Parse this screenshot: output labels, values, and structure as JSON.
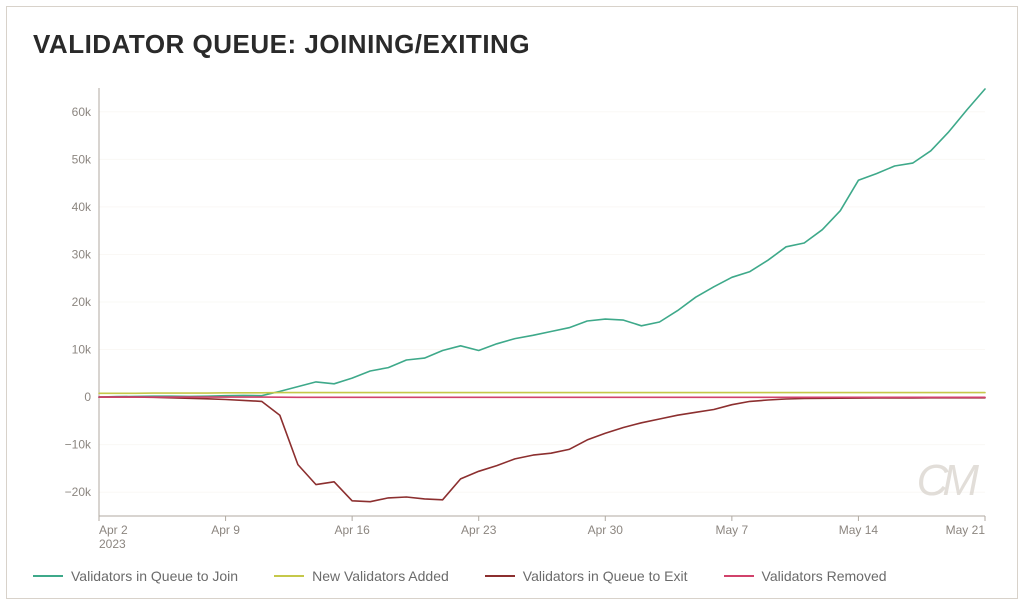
{
  "title": "VALIDATOR QUEUE: JOINING/EXITING",
  "watermark": "CM",
  "chart": {
    "type": "line",
    "background_color": "#ffffff",
    "grid_color": "#faf8f5",
    "axis_color": "#b0aaa2",
    "tick_label_color": "#8c8680",
    "tick_label_fontsize": 12,
    "ylim": [
      -25000,
      65000
    ],
    "ytick_step": 10000,
    "yticks": [
      -20000,
      -10000,
      0,
      10000,
      20000,
      30000,
      40000,
      50000,
      60000
    ],
    "ytick_labels": [
      "−20k",
      "−10k",
      "0",
      "10k",
      "20k",
      "30k",
      "40k",
      "50k",
      "60k"
    ],
    "x_start": 0,
    "x_end": 49,
    "xticks": [
      0,
      7,
      14,
      21,
      28,
      35,
      42,
      49
    ],
    "xtick_labels": [
      "Apr 2",
      "Apr 9",
      "Apr 16",
      "Apr 23",
      "Apr 30",
      "May 7",
      "May 14",
      "May 21"
    ],
    "xtick_year": "2023",
    "line_width": 1.6,
    "series": [
      {
        "id": "join_queue",
        "label": "Validators in Queue to Join",
        "color": "#3ea98a",
        "data": [
          0,
          100,
          150,
          200,
          200,
          150,
          200,
          300,
          350,
          300,
          1200,
          2200,
          3200,
          2800,
          4000,
          5500,
          6200,
          7800,
          8200,
          9800,
          10800,
          9800,
          11200,
          12300,
          13000,
          13800,
          14600,
          16000,
          16400,
          16200,
          15000,
          15800,
          18200,
          21000,
          23200,
          25200,
          26400,
          28800,
          31600,
          32400,
          35200,
          39200,
          45600,
          47000,
          48600,
          49200,
          51800,
          55800,
          60400,
          64800
        ]
      },
      {
        "id": "new_added",
        "label": "New Validators Added",
        "color": "#c5c84a",
        "data": [
          800,
          800,
          800,
          850,
          850,
          850,
          850,
          900,
          900,
          900,
          950,
          950,
          950,
          950,
          950,
          950,
          950,
          950,
          950,
          950,
          950,
          950,
          950,
          950,
          950,
          950,
          950,
          950,
          950,
          950,
          950,
          950,
          950,
          950,
          950,
          950,
          950,
          950,
          950,
          950,
          950,
          950,
          950,
          950,
          950,
          950,
          950,
          950,
          950,
          950
        ]
      },
      {
        "id": "exit_queue",
        "label": "Validators in Queue to Exit",
        "color": "#8c2f2f",
        "data": [
          0,
          0,
          0,
          -50,
          -150,
          -250,
          -350,
          -500,
          -700,
          -900,
          -3800,
          -14200,
          -18400,
          -17800,
          -21800,
          -22000,
          -21200,
          -21000,
          -21400,
          -21600,
          -17200,
          -15600,
          -14400,
          -13000,
          -12200,
          -11800,
          -11000,
          -9000,
          -7600,
          -6400,
          -5400,
          -4600,
          -3800,
          -3200,
          -2600,
          -1600,
          -900,
          -600,
          -400,
          -300,
          -250,
          -220,
          -200,
          -180,
          -170,
          -160,
          -150,
          -150,
          -150,
          -150
        ]
      },
      {
        "id": "removed",
        "label": "Validators Removed",
        "color": "#d1426b",
        "data": [
          0,
          0,
          0,
          0,
          0,
          0,
          0,
          0,
          0,
          0,
          -20,
          -40,
          -40,
          -40,
          -50,
          -50,
          -50,
          -50,
          -50,
          -50,
          -50,
          -50,
          -50,
          -50,
          -50,
          -50,
          -50,
          -50,
          -50,
          -50,
          -50,
          -50,
          -50,
          -50,
          -50,
          -50,
          -50,
          -50,
          -50,
          -40,
          -40,
          -40,
          -40,
          -40,
          -40,
          -40,
          -40,
          -40,
          -40,
          -40
        ]
      }
    ]
  },
  "legend": [
    {
      "label": "Validators in Queue to Join",
      "color": "#3ea98a"
    },
    {
      "label": "New Validators Added",
      "color": "#c5c84a"
    },
    {
      "label": "Validators in Queue to Exit",
      "color": "#8c2f2f"
    },
    {
      "label": "Validators Removed",
      "color": "#d1426b"
    }
  ]
}
